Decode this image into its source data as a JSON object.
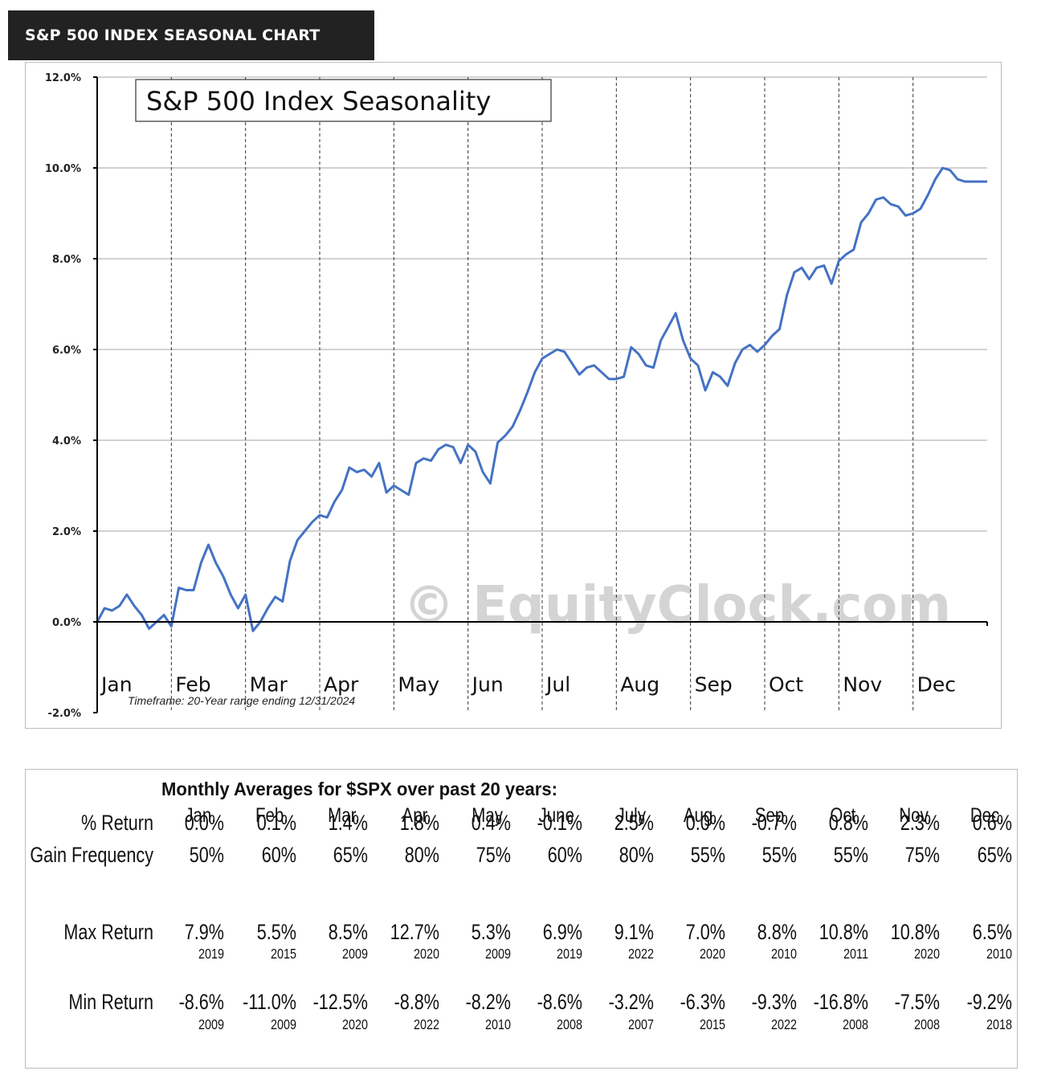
{
  "header": {
    "title": "S&P 500 INDEX SEASONAL CHART"
  },
  "chart_data": {
    "type": "line",
    "title": "S&P 500 Index Seasonality",
    "timeframe_note": "Timeframe: 20-Year range ending 12/31/2024",
    "watermark": "© EquityClock.com",
    "ylim": [
      -2,
      12
    ],
    "y_ticks": [
      {
        "value": -2,
        "label": "-2.0%"
      },
      {
        "value": 0,
        "label": "0.0%"
      },
      {
        "value": 2,
        "label": "2.0%"
      },
      {
        "value": 4,
        "label": "4.0%"
      },
      {
        "value": 6,
        "label": "6.0%"
      },
      {
        "value": 8,
        "label": "8.0%"
      },
      {
        "value": 10,
        "label": "10.0%"
      },
      {
        "value": 12,
        "label": "12.0%"
      }
    ],
    "months": [
      "Jan",
      "Feb",
      "Mar",
      "Apr",
      "May",
      "Jun",
      "Jul",
      "Aug",
      "Sep",
      "Oct",
      "Nov",
      "Dec"
    ],
    "grid": true,
    "line_color": "#4472c4",
    "x": [
      0,
      0.1,
      0.2,
      0.3,
      0.4,
      0.5,
      0.6,
      0.7,
      0.8,
      0.9,
      1.0,
      1.1,
      1.2,
      1.3,
      1.4,
      1.5,
      1.6,
      1.7,
      1.8,
      1.9,
      2.0,
      2.1,
      2.2,
      2.3,
      2.4,
      2.5,
      2.6,
      2.7,
      2.8,
      2.9,
      3.0,
      3.1,
      3.2,
      3.3,
      3.4,
      3.5,
      3.6,
      3.7,
      3.8,
      3.9,
      4.0,
      4.1,
      4.2,
      4.3,
      4.4,
      4.5,
      4.6,
      4.7,
      4.8,
      4.9,
      5.0,
      5.1,
      5.2,
      5.3,
      5.4,
      5.5,
      5.6,
      5.7,
      5.8,
      5.9,
      6.0,
      6.1,
      6.2,
      6.3,
      6.4,
      6.5,
      6.6,
      6.7,
      6.8,
      6.9,
      7.0,
      7.1,
      7.2,
      7.3,
      7.4,
      7.5,
      7.6,
      7.7,
      7.8,
      7.9,
      8.0,
      8.1,
      8.2,
      8.3,
      8.4,
      8.5,
      8.6,
      8.7,
      8.8,
      8.9,
      9.0,
      9.1,
      9.2,
      9.3,
      9.4,
      9.5,
      9.6,
      9.7,
      9.8,
      9.9,
      10.0,
      10.1,
      10.2,
      10.3,
      10.4,
      10.5,
      10.6,
      10.7,
      10.8,
      10.9,
      11.0,
      11.1,
      11.2,
      11.3,
      11.4,
      11.5,
      11.6,
      11.7,
      11.8,
      11.9,
      12.0
    ],
    "y": [
      0.0,
      0.3,
      0.25,
      0.35,
      0.6,
      0.35,
      0.15,
      -0.15,
      0.0,
      0.15,
      -0.1,
      0.75,
      0.7,
      0.7,
      1.3,
      1.7,
      1.3,
      1.0,
      0.6,
      0.3,
      0.6,
      -0.2,
      0.0,
      0.3,
      0.55,
      0.45,
      1.35,
      1.8,
      2.0,
      2.2,
      2.35,
      2.3,
      2.65,
      2.9,
      3.4,
      3.3,
      3.35,
      3.2,
      3.5,
      2.85,
      3.0,
      2.9,
      2.8,
      3.5,
      3.6,
      3.55,
      3.8,
      3.9,
      3.85,
      3.5,
      3.9,
      3.75,
      3.3,
      3.05,
      3.95,
      4.1,
      4.3,
      4.65,
      5.05,
      5.5,
      5.8,
      5.9,
      6.0,
      5.95,
      5.7,
      5.45,
      5.6,
      5.65,
      5.5,
      5.35,
      5.35,
      5.4,
      6.05,
      5.9,
      5.65,
      5.6,
      6.2,
      6.5,
      6.8,
      6.2,
      5.8,
      5.65,
      5.1,
      5.5,
      5.4,
      5.2,
      5.7,
      6.0,
      6.1,
      5.95,
      6.1,
      6.3,
      6.45,
      7.2,
      7.7,
      7.8,
      7.55,
      7.8,
      7.85,
      7.45,
      7.95,
      8.1,
      8.2,
      8.8,
      9.0,
      9.3,
      9.35,
      9.2,
      9.15,
      8.95,
      9.0,
      9.1,
      9.4,
      9.75,
      10.0,
      9.95,
      9.75,
      9.7,
      9.7,
      9.7,
      9.7
    ]
  },
  "table": {
    "title": "Monthly Averages for $SPX over past 20 years:",
    "months": [
      "Jan.",
      "Feb.",
      "Mar.",
      "Apr.",
      "May",
      "June",
      "July",
      "Aug.",
      "Sep.",
      "Oct.",
      "Nov.",
      "Dec."
    ],
    "rows": [
      {
        "label": "% Return",
        "values": [
          "0.0%",
          "0.1%",
          "1.4%",
          "1.8%",
          "0.4%",
          "-0.1%",
          "2.5%",
          "0.0%",
          "-0.7%",
          "0.8%",
          "2.3%",
          "0.6%"
        ]
      },
      {
        "label": "Gain Frequency",
        "values": [
          "50%",
          "60%",
          "65%",
          "80%",
          "75%",
          "60%",
          "80%",
          "55%",
          "55%",
          "55%",
          "75%",
          "65%"
        ]
      },
      {
        "label": "Max Return",
        "values": [
          "7.9%",
          "5.5%",
          "8.5%",
          "12.7%",
          "5.3%",
          "6.9%",
          "9.1%",
          "7.0%",
          "8.8%",
          "10.8%",
          "10.8%",
          "6.5%"
        ],
        "years": [
          "2019",
          "2015",
          "2009",
          "2020",
          "2009",
          "2019",
          "2022",
          "2020",
          "2010",
          "2011",
          "2020",
          "2010"
        ]
      },
      {
        "label": "Min Return",
        "values": [
          "-8.6%",
          "-11.0%",
          "-12.5%",
          "-8.8%",
          "-8.2%",
          "-8.6%",
          "-3.2%",
          "-6.3%",
          "-9.3%",
          "-16.8%",
          "-7.5%",
          "-9.2%"
        ],
        "years": [
          "2009",
          "2009",
          "2020",
          "2022",
          "2010",
          "2008",
          "2007",
          "2015",
          "2022",
          "2008",
          "2008",
          "2018"
        ]
      }
    ]
  }
}
